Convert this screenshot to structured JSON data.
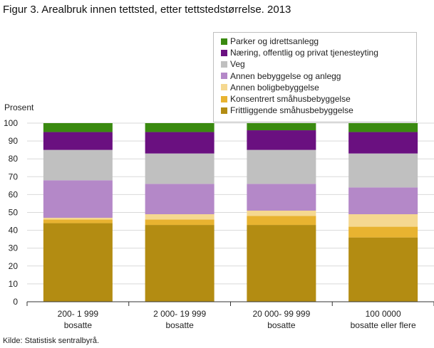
{
  "title": "Figur 3. Arealbruk innen tettsted, etter tettstedstørrelse. 2013",
  "source": "Kilde: Statistisk sentralbyrå.",
  "chart_data": {
    "type": "bar",
    "stacked": true,
    "ylabel": "Prosent",
    "ylim": [
      0,
      100
    ],
    "yticks": [
      0,
      10,
      20,
      30,
      40,
      50,
      60,
      70,
      80,
      90,
      100
    ],
    "grid": true,
    "legend_position": "top-right",
    "categories": [
      [
        "200- 1 999",
        "bosatte"
      ],
      [
        "2 000- 19 999",
        "bosatte"
      ],
      [
        "20 000- 99 999",
        "bosatte"
      ],
      [
        "100 0000",
        "bosatte eller flere"
      ]
    ],
    "series": [
      {
        "name": "Frittliggende småhusbebyggelse",
        "color": "#b38c12",
        "values": [
          44,
          43,
          43,
          36
        ]
      },
      {
        "name": "Konsentrert småhusbebyggelse",
        "color": "#e8b330",
        "values": [
          2,
          3,
          5,
          6
        ]
      },
      {
        "name": "Annen boligbebyggelse",
        "color": "#f5d890",
        "values": [
          1,
          3,
          3,
          7
        ]
      },
      {
        "name": "Annen bebyggelse og anlegg",
        "color": "#b488c8",
        "values": [
          21,
          17,
          15,
          15
        ]
      },
      {
        "name": "Veg",
        "color": "#c0c0c0",
        "values": [
          17,
          17,
          19,
          19
        ]
      },
      {
        "name": "Næring, offentlig og privat tjenesteyting",
        "color": "#6a1080",
        "values": [
          10,
          12,
          11,
          12
        ]
      },
      {
        "name": "Parker og idrettsanlegg",
        "color": "#3a8a10",
        "values": [
          5,
          5,
          4,
          5
        ]
      }
    ]
  }
}
